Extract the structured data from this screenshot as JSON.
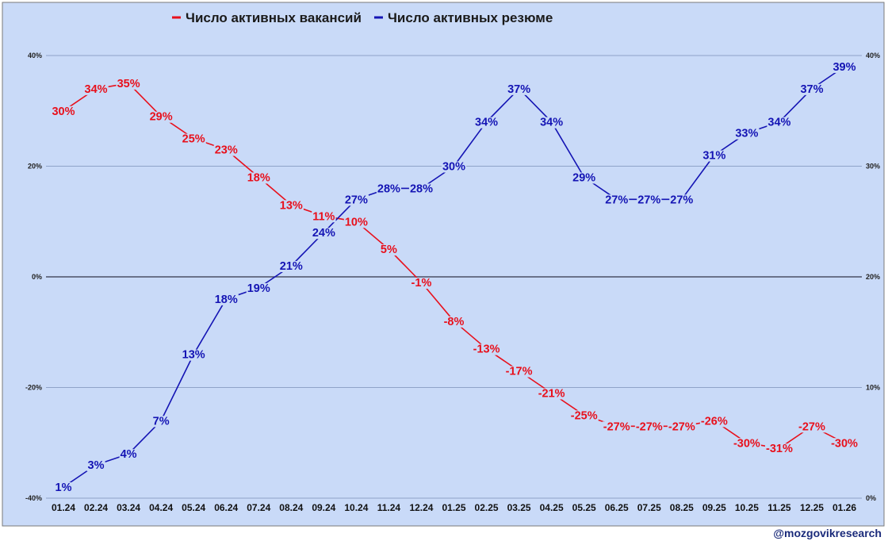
{
  "watermark": "@mozgovikresearch",
  "chart_data": {
    "type": "line",
    "categories": [
      "01.24",
      "02.24",
      "03.24",
      "04.24",
      "05.24",
      "06.24",
      "07.24",
      "08.24",
      "09.24",
      "10.24",
      "11.24",
      "12.24",
      "01.25",
      "02.25",
      "03.25",
      "04.25",
      "05.25",
      "06.25",
      "07.25",
      "08.25",
      "09.25",
      "10.25",
      "11.25",
      "12.25",
      "01.26"
    ],
    "series": [
      {
        "name": "Число активных вакансий",
        "axis": "left",
        "color": "#e8101c",
        "values": [
          30,
          34,
          35,
          29,
          25,
          23,
          18,
          13,
          11,
          10,
          5,
          -1,
          -8,
          -13,
          -17,
          -21,
          -25,
          -27,
          -27,
          -27,
          -26,
          -30,
          -31,
          -27,
          -30
        ],
        "labels": [
          "30%",
          "34%",
          "35%",
          "29%",
          "25%",
          "23%",
          "18%",
          "13%",
          "11%",
          "10%",
          "5%",
          "-1%",
          "-8%",
          "-13%",
          "-17%",
          "-21%",
          "-25%",
          "-27%",
          "-27%",
          "-27%",
          "-26%",
          "-30%",
          "-31%",
          "-27%",
          "-30%"
        ]
      },
      {
        "name": "Число активных резюме",
        "axis": "right",
        "color": "#1414b4",
        "values": [
          1,
          3,
          4,
          7,
          13,
          18,
          19,
          21,
          24,
          27,
          28,
          28,
          30,
          34,
          37,
          34,
          29,
          27,
          27,
          27,
          31,
          33,
          34,
          37,
          39
        ],
        "labels": [
          "1%",
          "3%",
          "4%",
          "7%",
          "13%",
          "18%",
          "19%",
          "21%",
          "24%",
          "27%",
          "28%",
          "28%",
          "30%",
          "34%",
          "37%",
          "34%",
          "29%",
          "27%",
          "27%",
          "27%",
          "31%",
          "33%",
          "34%",
          "37%",
          "39%"
        ]
      }
    ],
    "y_left": {
      "min": -40,
      "max": 40,
      "ticks": [
        "-40%",
        "-20%",
        "0%",
        "20%",
        "40%"
      ]
    },
    "y_right": {
      "min": 0,
      "max": 40,
      "ticks": [
        "0%",
        "10%",
        "20%",
        "30%",
        "40%"
      ]
    },
    "legend_position": "top-center",
    "grid": true,
    "background_color": "#c9daf8",
    "gridline_color": "#8fa3c8",
    "zero_line_color": "#4a4f66"
  }
}
